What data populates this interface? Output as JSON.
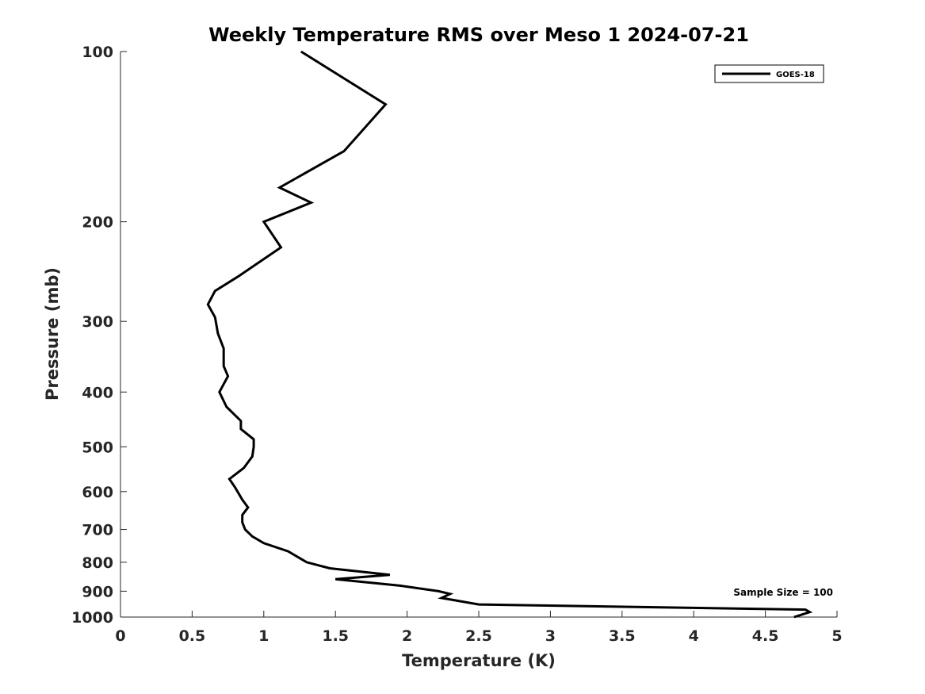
{
  "chart_data": {
    "type": "line",
    "title": "Weekly Temperature RMS over Meso 1 2024-07-21",
    "xlabel": "Temperature (K)",
    "ylabel": "Pressure (mb)",
    "xlim": [
      0,
      5
    ],
    "ylim": [
      100,
      1000
    ],
    "yscale": "log",
    "y_reversed": true,
    "grid": false,
    "legend_position": "top-right",
    "x_ticks": [
      "0",
      "0.5",
      "1",
      "1.5",
      "2",
      "2.5",
      "3",
      "3.5",
      "4",
      "4.5",
      "5"
    ],
    "y_ticks": [
      "100",
      "200",
      "300",
      "400",
      "500",
      "600",
      "700",
      "800",
      "900",
      "1000"
    ],
    "annotation": "Sample Size = 100",
    "series": [
      {
        "name": "GOES-18",
        "color": "#000000",
        "points": [
          [
            1.26,
            100
          ],
          [
            1.85,
            124
          ],
          [
            1.56,
            150
          ],
          [
            1.11,
            174
          ],
          [
            1.33,
            185
          ],
          [
            1.0,
            200
          ],
          [
            1.12,
            222
          ],
          [
            0.82,
            250
          ],
          [
            0.66,
            265
          ],
          [
            0.61,
            280
          ],
          [
            0.66,
            295
          ],
          [
            0.68,
            315
          ],
          [
            0.72,
            335
          ],
          [
            0.72,
            360
          ],
          [
            0.75,
            375
          ],
          [
            0.69,
            400
          ],
          [
            0.74,
            425
          ],
          [
            0.84,
            450
          ],
          [
            0.84,
            465
          ],
          [
            0.93,
            485
          ],
          [
            0.93,
            500
          ],
          [
            0.92,
            520
          ],
          [
            0.86,
            545
          ],
          [
            0.76,
            570
          ],
          [
            0.8,
            590
          ],
          [
            0.85,
            620
          ],
          [
            0.89,
            640
          ],
          [
            0.85,
            660
          ],
          [
            0.85,
            680
          ],
          [
            0.87,
            700
          ],
          [
            0.92,
            720
          ],
          [
            1.0,
            740
          ],
          [
            1.17,
            765
          ],
          [
            1.3,
            800
          ],
          [
            1.46,
            820
          ],
          [
            1.88,
            842
          ],
          [
            1.5,
            857
          ],
          [
            1.95,
            880
          ],
          [
            2.22,
            900
          ],
          [
            2.3,
            910
          ],
          [
            2.24,
            925
          ],
          [
            2.5,
            950
          ],
          [
            4.78,
            970
          ],
          [
            4.81,
            980
          ],
          [
            4.7,
            1000
          ]
        ]
      }
    ]
  }
}
